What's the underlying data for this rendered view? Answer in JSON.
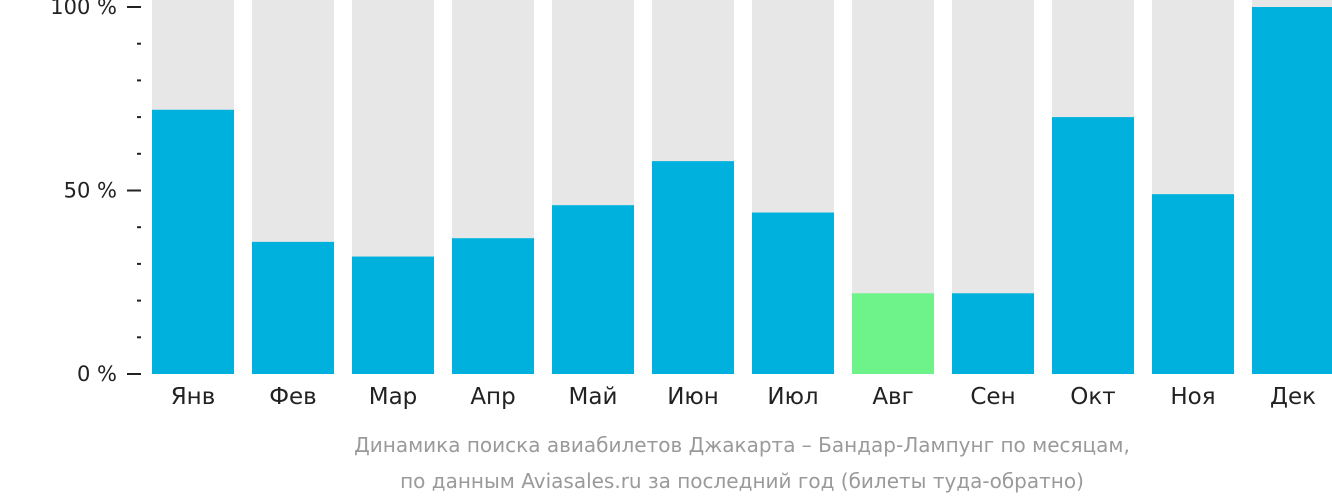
{
  "chart_data": {
    "type": "bar",
    "categories": [
      "Янв",
      "Фев",
      "Мар",
      "Апр",
      "Май",
      "Июн",
      "Июл",
      "Авг",
      "Сен",
      "Окт",
      "Ноя",
      "Дек"
    ],
    "values": [
      72,
      36,
      32,
      37,
      46,
      58,
      44,
      22,
      22,
      70,
      49,
      100
    ],
    "ylim": [
      0,
      100
    ],
    "yticks": [
      {
        "value": 0,
        "label": "0 %"
      },
      {
        "value": 50,
        "label": "50 %"
      },
      {
        "value": 100,
        "label": "100 %"
      }
    ],
    "minor_tick_step": 10,
    "highlight_index": 7,
    "caption_lines": [
      "Динамика поиска авиабилетов Джакарта – Бандар-Лампунг по месяцам,",
      "по данным Aviasales.ru за последний год (билеты туда-обратно)"
    ],
    "colors": {
      "bar": "#00b1dd",
      "highlight": "#6ef28a",
      "background_bar": "#e7e7e7",
      "axis": "#222222",
      "caption": "#9a9a9a"
    },
    "grid": false,
    "legend": "none"
  }
}
